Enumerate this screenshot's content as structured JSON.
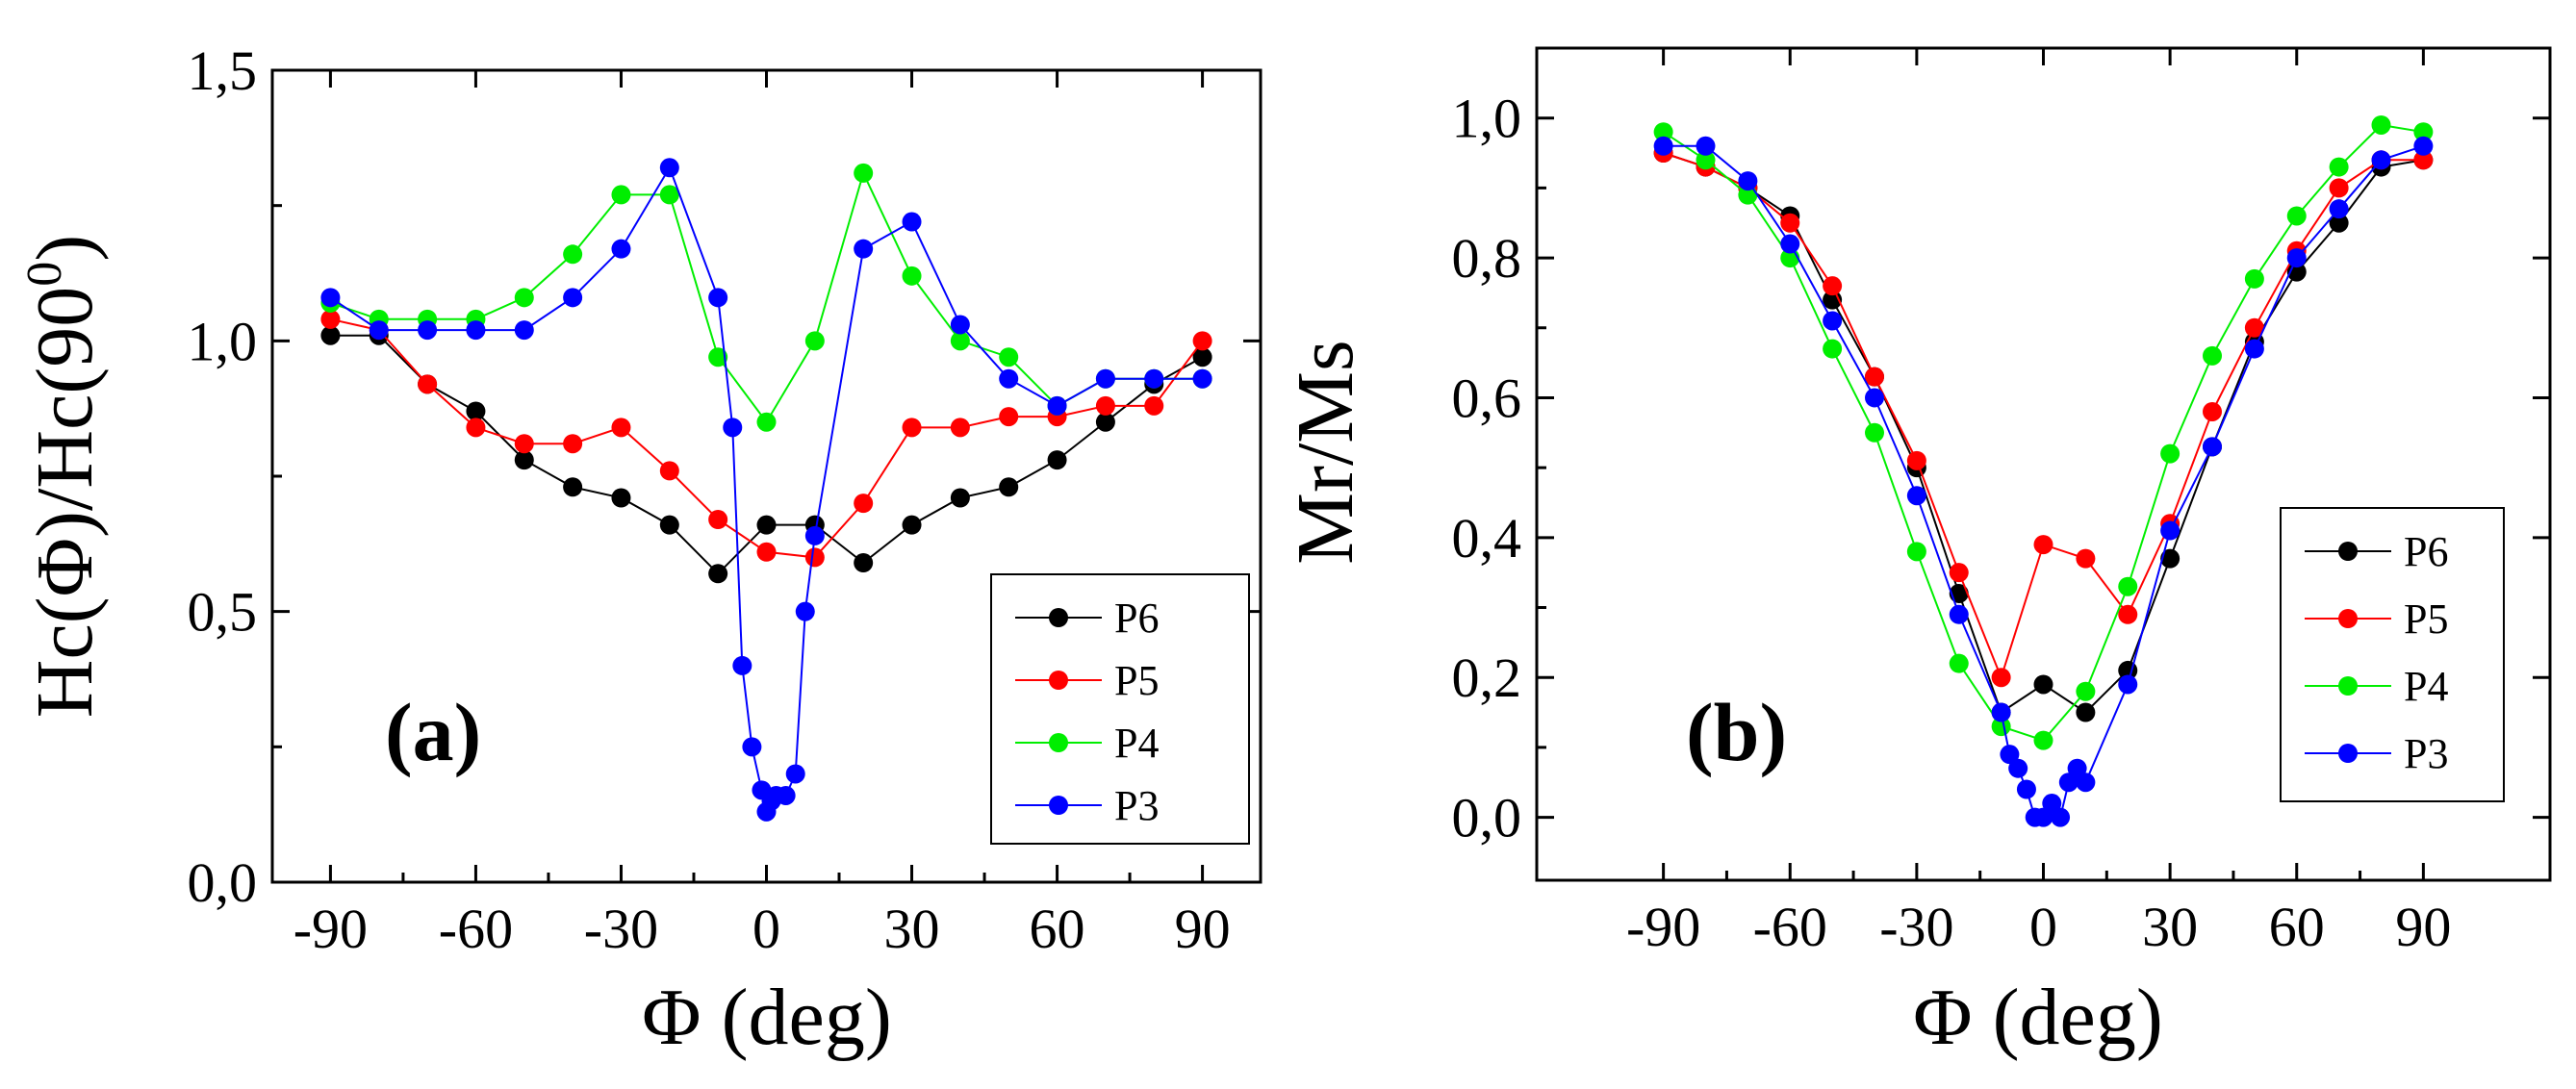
{
  "chart_data": [
    {
      "type": "line",
      "panel_label": "(a)",
      "xlabel": "Φ (deg)",
      "ylabel": "Hc(Φ)/Hc(90",
      "ylabel_superscript": "0",
      "ylabel_suffix": ")",
      "xlim": [
        -102,
        102
      ],
      "ylim": [
        0.0,
        1.5
      ],
      "xticks": [
        -90,
        -60,
        -30,
        0,
        30,
        60,
        90
      ],
      "xtick_labels": [
        "-90",
        "-60",
        "-30",
        "0",
        "30",
        "60",
        "90"
      ],
      "yticks": [
        0.0,
        0.5,
        1.0,
        1.5
      ],
      "ytick_labels": [
        "0,0",
        "0,5",
        "1,0",
        "1,5"
      ],
      "grid": false,
      "legend_position": "lower-right",
      "series": [
        {
          "name": "P6",
          "color": "#000000",
          "x": [
            -90,
            -80,
            -70,
            -60,
            -50,
            -40,
            -30,
            -20,
            -10,
            0,
            10,
            20,
            30,
            40,
            50,
            60,
            70,
            80,
            90
          ],
          "y": [
            1.01,
            1.01,
            0.92,
            0.87,
            0.78,
            0.73,
            0.71,
            0.66,
            0.57,
            0.66,
            0.66,
            0.59,
            0.66,
            0.71,
            0.73,
            0.78,
            0.85,
            0.92,
            0.97
          ]
        },
        {
          "name": "P5",
          "color": "#ff0000",
          "x": [
            -90,
            -80,
            -70,
            -60,
            -50,
            -40,
            -30,
            -20,
            -10,
            0,
            10,
            20,
            30,
            40,
            50,
            60,
            70,
            80,
            90
          ],
          "y": [
            1.04,
            1.02,
            0.92,
            0.84,
            0.81,
            0.81,
            0.84,
            0.76,
            0.67,
            0.61,
            0.6,
            0.7,
            0.84,
            0.84,
            0.86,
            0.86,
            0.88,
            0.88,
            1.0
          ]
        },
        {
          "name": "P4",
          "color": "#00ee00",
          "x": [
            -90,
            -80,
            -70,
            -60,
            -50,
            -40,
            -30,
            -20,
            -10,
            0,
            10,
            20,
            30,
            40,
            50,
            60,
            70,
            80,
            90
          ],
          "y": [
            1.07,
            1.04,
            1.04,
            1.04,
            1.08,
            1.16,
            1.27,
            1.27,
            0.97,
            0.85,
            1.0,
            1.31,
            1.12,
            1.0,
            0.97,
            0.88,
            0.93,
            0.93,
            0.93
          ]
        },
        {
          "name": "P3",
          "color": "#0000ff",
          "x": [
            -90,
            -80,
            -70,
            -60,
            -50,
            -40,
            -30,
            -20,
            -10,
            -7,
            -5,
            -3,
            -1,
            0,
            1,
            2,
            4,
            6,
            8,
            10,
            20,
            30,
            40,
            50,
            60,
            70,
            80,
            90
          ],
          "y": [
            1.08,
            1.02,
            1.02,
            1.02,
            1.02,
            1.08,
            1.17,
            1.32,
            1.08,
            0.84,
            0.4,
            0.25,
            0.17,
            0.13,
            0.15,
            0.16,
            0.16,
            0.2,
            0.5,
            0.64,
            1.17,
            1.22,
            1.03,
            0.93,
            0.88,
            0.93,
            0.93,
            0.93
          ]
        }
      ]
    },
    {
      "type": "line",
      "panel_label": "(b)",
      "xlabel": "Φ (deg)",
      "ylabel": "Mr/Ms",
      "xlim": [
        -120,
        120
      ],
      "ylim": [
        -0.09,
        1.1
      ],
      "xticks": [
        -90,
        -60,
        -30,
        0,
        30,
        60,
        90
      ],
      "xtick_labels": [
        "-90",
        "-60",
        "-30",
        "0",
        "30",
        "60",
        "90"
      ],
      "yticks": [
        0.0,
        0.2,
        0.4,
        0.6,
        0.8,
        1.0
      ],
      "ytick_labels": [
        "0,0",
        "0,2",
        "0,4",
        "0,6",
        "0,8",
        "1,0"
      ],
      "grid": false,
      "legend_position": "center-right",
      "series": [
        {
          "name": "P6",
          "color": "#000000",
          "x": [
            -90,
            -80,
            -70,
            -60,
            -50,
            -40,
            -30,
            -20,
            -10,
            0,
            10,
            20,
            30,
            40,
            50,
            60,
            70,
            80,
            90
          ],
          "y": [
            0.95,
            0.93,
            0.9,
            0.86,
            0.74,
            0.63,
            0.5,
            0.32,
            0.15,
            0.19,
            0.15,
            0.21,
            0.37,
            0.53,
            0.68,
            0.78,
            0.85,
            0.93,
            0.94
          ]
        },
        {
          "name": "P5",
          "color": "#ff0000",
          "x": [
            -90,
            -80,
            -70,
            -60,
            -50,
            -40,
            -30,
            -20,
            -10,
            0,
            10,
            20,
            30,
            40,
            50,
            60,
            70,
            80,
            90
          ],
          "y": [
            0.95,
            0.93,
            0.9,
            0.85,
            0.76,
            0.63,
            0.51,
            0.35,
            0.2,
            0.39,
            0.37,
            0.29,
            0.42,
            0.58,
            0.7,
            0.81,
            0.9,
            0.94,
            0.94
          ]
        },
        {
          "name": "P4",
          "color": "#00ee00",
          "x": [
            -90,
            -80,
            -70,
            -60,
            -50,
            -40,
            -30,
            -20,
            -10,
            0,
            10,
            20,
            30,
            40,
            50,
            60,
            70,
            80,
            90
          ],
          "y": [
            0.98,
            0.94,
            0.89,
            0.8,
            0.67,
            0.55,
            0.38,
            0.22,
            0.13,
            0.11,
            0.18,
            0.33,
            0.52,
            0.66,
            0.77,
            0.86,
            0.93,
            0.99,
            0.98
          ]
        },
        {
          "name": "P3",
          "color": "#0000ff",
          "x": [
            -90,
            -80,
            -70,
            -60,
            -50,
            -40,
            -30,
            -20,
            -10,
            -8,
            -6,
            -4,
            -2,
            0,
            2,
            4,
            6,
            8,
            10,
            20,
            30,
            40,
            50,
            60,
            70,
            80,
            90
          ],
          "y": [
            0.96,
            0.96,
            0.91,
            0.82,
            0.71,
            0.6,
            0.46,
            0.29,
            0.15,
            0.09,
            0.07,
            0.04,
            0.0,
            0.0,
            0.02,
            0.0,
            0.05,
            0.07,
            0.05,
            0.19,
            0.41,
            0.53,
            0.67,
            0.8,
            0.87,
            0.94,
            0.96
          ]
        }
      ]
    }
  ]
}
